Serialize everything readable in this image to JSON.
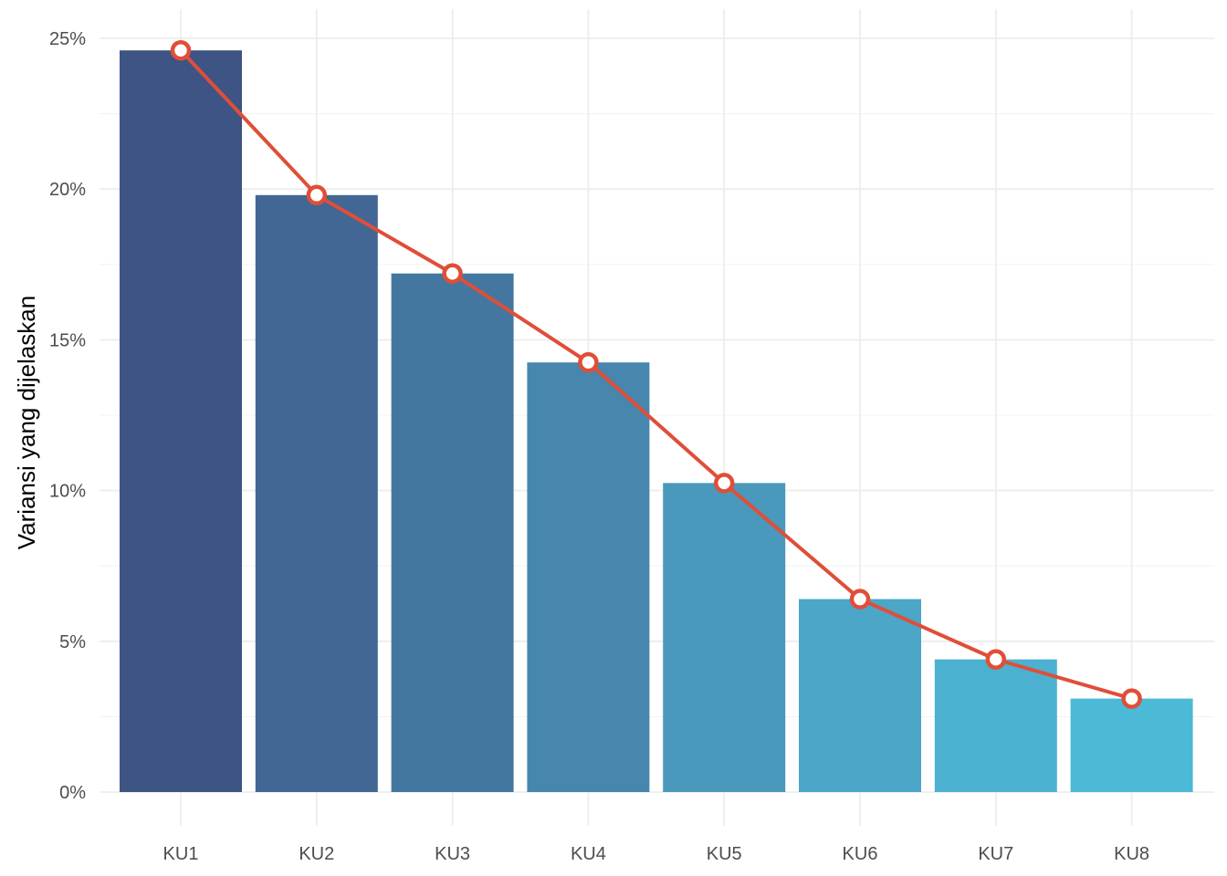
{
  "chart_data": {
    "type": "bar",
    "categories": [
      "KU1",
      "KU2",
      "KU3",
      "KU4",
      "KU5",
      "KU6",
      "KU7",
      "KU8"
    ],
    "values": [
      24.6,
      19.8,
      17.2,
      14.25,
      10.25,
      6.4,
      4.4,
      3.1
    ],
    "line_overlay": true,
    "xlabel": "",
    "ylabel": "Variansi yang dijelaskan",
    "ylim": [
      0,
      25
    ],
    "y_ticks": [
      0,
      5,
      10,
      15,
      20,
      25
    ],
    "y_tick_labels": [
      "0%",
      "5%",
      "10%",
      "15%",
      "20%",
      "25%"
    ],
    "grid": true,
    "bar_colors": [
      "#3d5485",
      "#426794",
      "#44779f",
      "#4787ad",
      "#4a98bc",
      "#4ba6c8",
      "#4cb1d0",
      "#4cb9d6"
    ],
    "line_color": "#e04e38"
  }
}
